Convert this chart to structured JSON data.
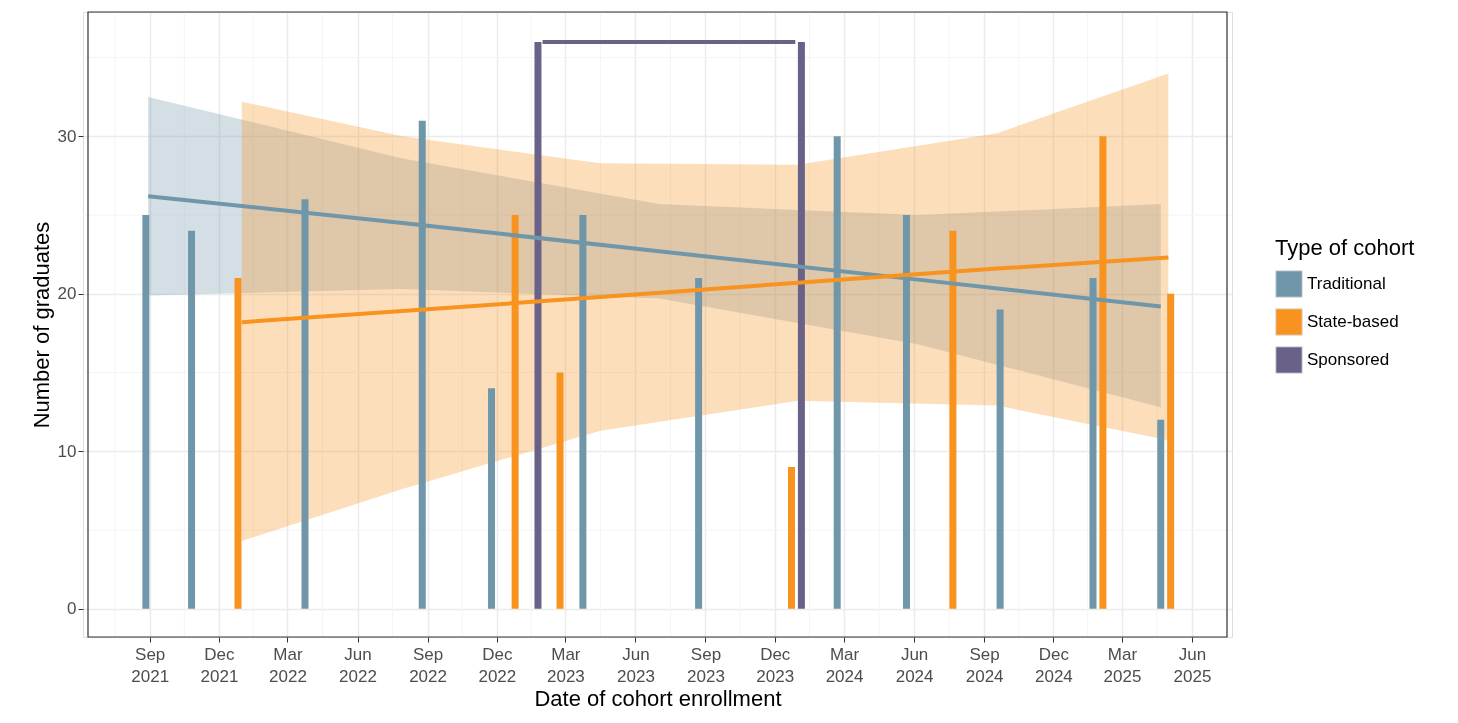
{
  "chart_data": {
    "type": "bar",
    "xlabel": "Date of cohort enrollment",
    "ylabel": "Number of graduates",
    "legend_title": "Type of cohort",
    "legend": "right",
    "grid": true,
    "xlim": [
      "2021-06-12",
      "2025-07-17"
    ],
    "ylim": [
      -1.8,
      37.9
    ],
    "yticks": [
      0,
      10,
      20,
      30
    ],
    "xticks": [
      {
        "value": "2021-09-01",
        "label": "Sep\n2021"
      },
      {
        "value": "2021-12-01",
        "label": "Dec\n2021"
      },
      {
        "value": "2022-03-01",
        "label": "Mar\n2022"
      },
      {
        "value": "2022-06-01",
        "label": "Jun\n2022"
      },
      {
        "value": "2022-09-01",
        "label": "Sep\n2022"
      },
      {
        "value": "2022-12-01",
        "label": "Dec\n2022"
      },
      {
        "value": "2023-03-01",
        "label": "Mar\n2023"
      },
      {
        "value": "2023-06-01",
        "label": "Jun\n2023"
      },
      {
        "value": "2023-09-01",
        "label": "Sep\n2023"
      },
      {
        "value": "2023-12-01",
        "label": "Dec\n2023"
      },
      {
        "value": "2024-03-01",
        "label": "Mar\n2024"
      },
      {
        "value": "2024-06-01",
        "label": "Jun\n2024"
      },
      {
        "value": "2024-09-01",
        "label": "Sep\n2024"
      },
      {
        "value": "2024-12-01",
        "label": "Dec\n2024"
      },
      {
        "value": "2025-03-01",
        "label": "Mar\n2025"
      },
      {
        "value": "2025-06-01",
        "label": "Jun\n2025"
      }
    ],
    "series": [
      {
        "name": "Traditional",
        "color": "#6f96a9",
        "x": [
          "2021-08-27",
          "2021-10-26",
          "2022-03-24",
          "2022-08-25",
          "2022-11-24",
          "2023-03-24",
          "2023-08-23",
          "2024-02-21",
          "2024-05-22",
          "2024-09-22",
          "2025-01-22",
          "2025-04-21"
        ],
        "values": [
          25,
          24,
          26,
          31,
          14,
          25,
          21,
          30,
          25,
          19,
          21,
          12
        ]
      },
      {
        "name": "State-based",
        "color": "#f7931e",
        "x": [
          "2021-12-26",
          "2022-12-25",
          "2023-02-22",
          "2023-12-23",
          "2024-07-22",
          "2025-02-04",
          "2025-05-04"
        ],
        "values": [
          21,
          25,
          15,
          9,
          24,
          30,
          20
        ]
      },
      {
        "name": "Sponsored",
        "color": "#6a6188",
        "x": [
          "2023-01-24",
          "2024-01-05"
        ],
        "values": [
          36,
          36
        ]
      },
      {
        "type": "line",
        "color": "#6a6188",
        "x": [
          "2023-01-30",
          "2023-12-28"
        ],
        "values": [
          36,
          36
        ]
      },
      {
        "type": "line",
        "color": "#6f96a9",
        "x": [
          "2021-08-30",
          "2022-07-30",
          "2023-07-02",
          "2024-06-06",
          "2025-04-21"
        ],
        "values": [
          26.2,
          24.5,
          22.7,
          20.9,
          19.2
        ],
        "lower": [
          19.9,
          20.3,
          19.7,
          16.8,
          12.8
        ],
        "upper": [
          32.5,
          28.6,
          25.7,
          25.0,
          25.7
        ]
      },
      {
        "type": "line",
        "color": "#f7931e",
        "x": [
          "2021-12-31",
          "2022-07-30",
          "2023-04-16",
          "2023-12-31",
          "2024-09-18",
          "2025-05-01"
        ],
        "values": [
          18.2,
          18.9,
          19.8,
          20.7,
          21.6,
          22.3
        ],
        "lower": [
          4.3,
          7.6,
          11.3,
          13.2,
          12.9,
          10.7
        ],
        "upper": [
          32.2,
          30.0,
          28.3,
          28.2,
          30.2,
          34.0
        ]
      }
    ]
  }
}
